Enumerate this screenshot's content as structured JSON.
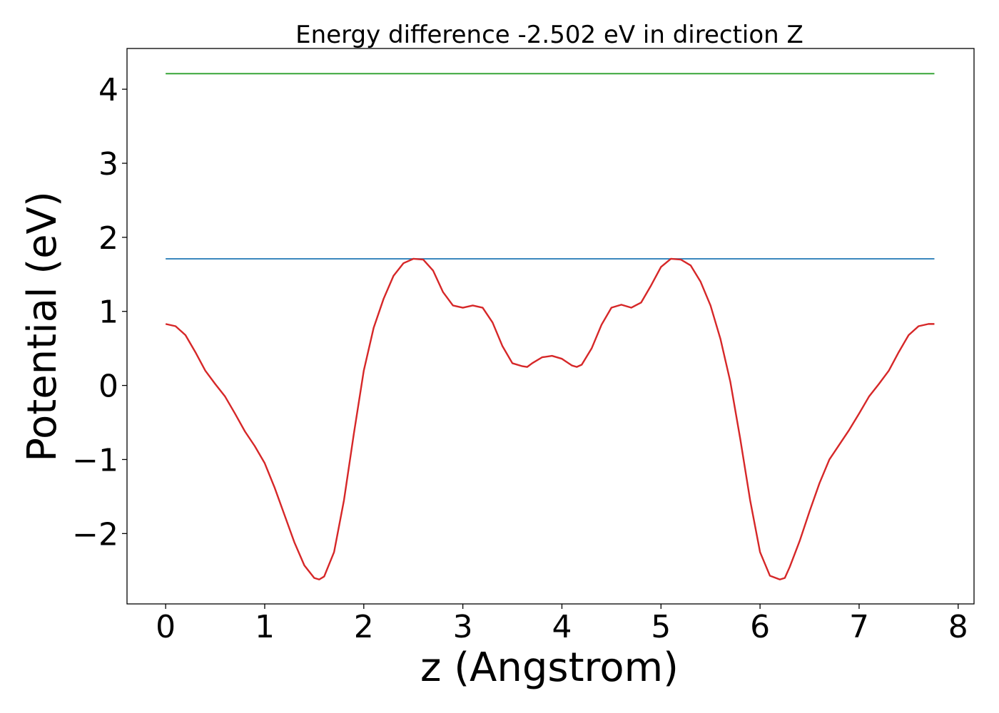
{
  "chart_data": {
    "type": "line",
    "title": "Energy difference -2.502 eV in direction Z",
    "xlabel": "z (Angstrom)",
    "ylabel": "Potential (eV)",
    "xlim": [
      -0.39,
      8.16
    ],
    "ylim": [
      -2.95,
      4.55
    ],
    "x_ticks": [
      0,
      1,
      2,
      3,
      4,
      5,
      6,
      7,
      8
    ],
    "x_tick_labels": [
      "0",
      "1",
      "2",
      "3",
      "4",
      "5",
      "6",
      "7",
      "8"
    ],
    "y_ticks": [
      -2,
      -1,
      0,
      1,
      2,
      3,
      4
    ],
    "y_tick_labels": [
      "−2",
      "−1",
      "0",
      "1",
      "2",
      "3",
      "4"
    ],
    "grid": false,
    "series": [
      {
        "color": "#2ca02c",
        "x": [
          0,
          7.76
        ],
        "y": [
          4.21,
          4.21
        ]
      },
      {
        "color": "#1f77b4",
        "x": [
          0,
          7.76
        ],
        "y": [
          1.71,
          1.71
        ]
      },
      {
        "color": "#d62728",
        "x": [
          0,
          0.1,
          0.2,
          0.3,
          0.4,
          0.5,
          0.6,
          0.7,
          0.8,
          0.9,
          1.0,
          1.1,
          1.2,
          1.3,
          1.4,
          1.5,
          1.55,
          1.6,
          1.7,
          1.8,
          1.9,
          2.0,
          2.1,
          2.2,
          2.3,
          2.4,
          2.5,
          2.6,
          2.7,
          2.8,
          2.9,
          3.0,
          3.1,
          3.2,
          3.3,
          3.4,
          3.5,
          3.6,
          3.65,
          3.7,
          3.8,
          3.9,
          4.0,
          4.1,
          4.15,
          4.2,
          4.3,
          4.4,
          4.5,
          4.6,
          4.7,
          4.8,
          4.9,
          5.0,
          5.1,
          5.2,
          5.3,
          5.4,
          5.5,
          5.6,
          5.7,
          5.8,
          5.9,
          6.0,
          6.1,
          6.2,
          6.25,
          6.3,
          6.4,
          6.5,
          6.6,
          6.7,
          6.8,
          6.9,
          7.0,
          7.1,
          7.2,
          7.3,
          7.4,
          7.5,
          7.6,
          7.7,
          7.76
        ],
        "y": [
          0.83,
          0.8,
          0.68,
          0.45,
          0.2,
          0.02,
          -0.15,
          -0.38,
          -0.62,
          -0.82,
          -1.05,
          -1.38,
          -1.75,
          -2.12,
          -2.43,
          -2.6,
          -2.62,
          -2.58,
          -2.25,
          -1.55,
          -0.65,
          0.2,
          0.78,
          1.17,
          1.48,
          1.65,
          1.71,
          1.7,
          1.55,
          1.26,
          1.08,
          1.05,
          1.08,
          1.05,
          0.85,
          0.53,
          0.3,
          0.26,
          0.25,
          0.3,
          0.38,
          0.4,
          0.36,
          0.27,
          0.25,
          0.28,
          0.5,
          0.82,
          1.05,
          1.09,
          1.05,
          1.12,
          1.35,
          1.6,
          1.71,
          1.7,
          1.62,
          1.4,
          1.08,
          0.63,
          0.05,
          -0.72,
          -1.55,
          -2.25,
          -2.57,
          -2.62,
          -2.6,
          -2.45,
          -2.1,
          -1.7,
          -1.32,
          -1.0,
          -0.8,
          -0.6,
          -0.38,
          -0.15,
          0.02,
          0.2,
          0.45,
          0.68,
          0.8,
          0.83,
          0.83
        ]
      }
    ]
  }
}
